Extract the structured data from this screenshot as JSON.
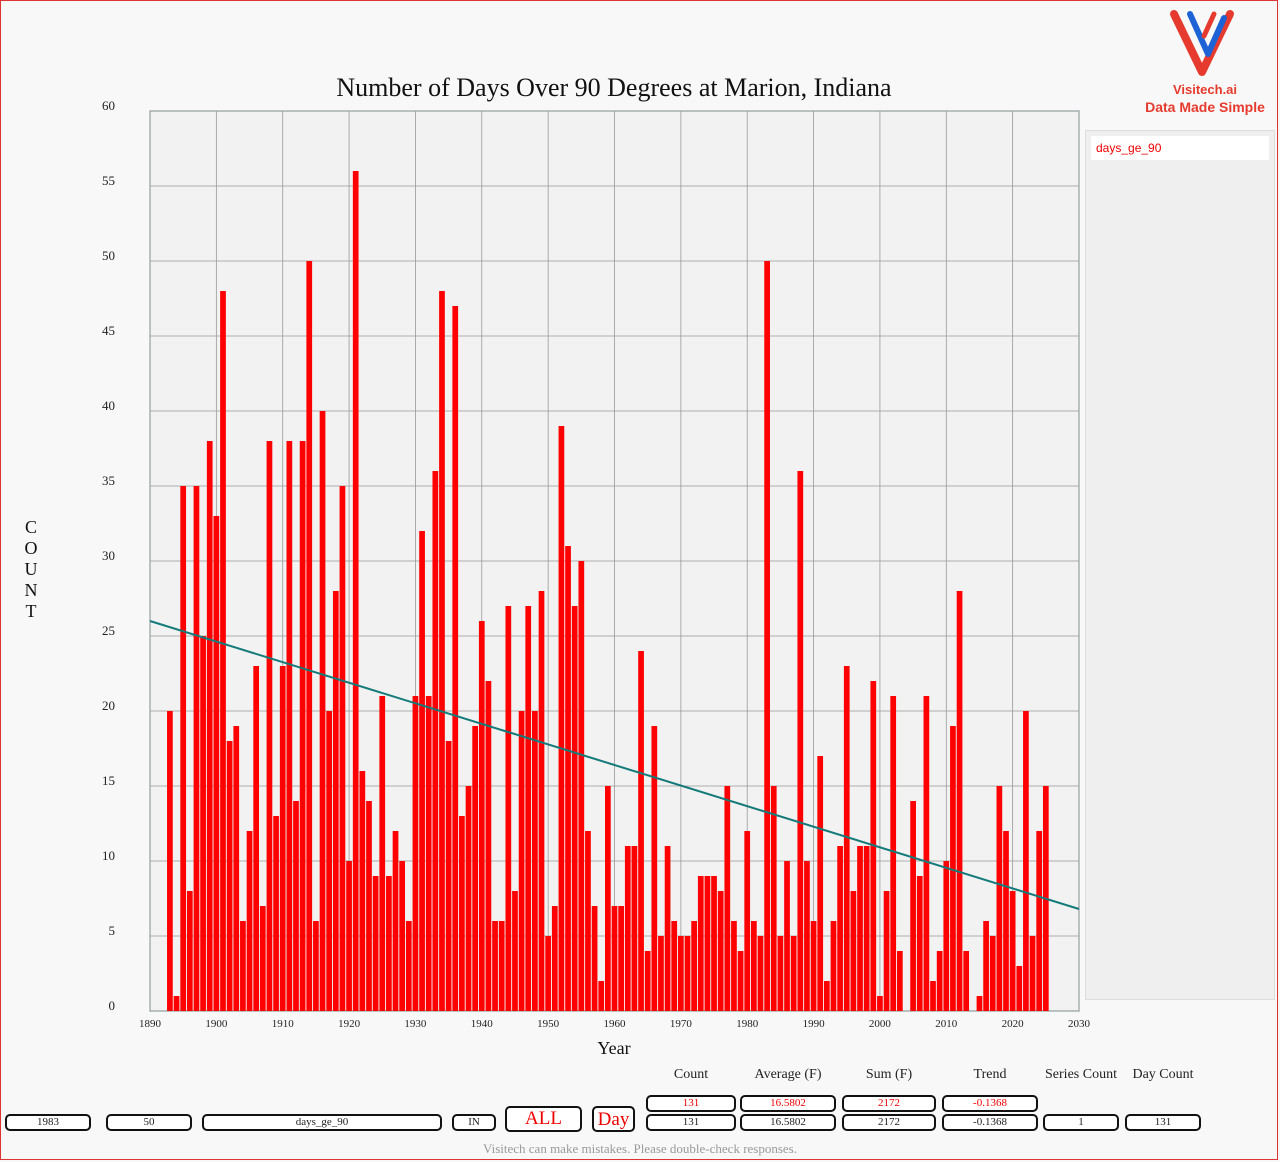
{
  "brand": {
    "name": "Visitech.ai",
    "tagline": "Data Made Simple"
  },
  "legend": {
    "items": [
      "days_ge_90"
    ]
  },
  "stats": {
    "headers": [
      "Count",
      "Average (F)",
      "Sum (F)",
      "Trend",
      "Series Count",
      "Day Count"
    ],
    "row1": [
      "131",
      "16.5802",
      "2172",
      "-0.1368"
    ],
    "row2": [
      "131",
      "16.5802",
      "2172",
      "-0.1368",
      "1",
      "131"
    ]
  },
  "controls": {
    "year_value": "1983",
    "value_value": "50",
    "series_value": "days_ge_90",
    "state_value": "IN",
    "all_label": "ALL",
    "day_label": "Day"
  },
  "footer": {
    "note": "Visitech can make mistakes. Please double-check responses."
  },
  "colors": {
    "bar": "#ff0000",
    "trend": "#147a7a",
    "accent": "#e53a2d"
  },
  "chart_data": {
    "type": "bar",
    "title": "Number of Days Over 90 Degrees at Marion, Indiana",
    "xlabel": "Year",
    "ylabel": "COUNT",
    "xlim": [
      1890,
      2030
    ],
    "ylim": [
      0,
      60
    ],
    "xticks": [
      1890,
      1900,
      1910,
      1920,
      1930,
      1940,
      1950,
      1960,
      1970,
      1980,
      1990,
      2000,
      2010,
      2020,
      2030
    ],
    "yticks": [
      0,
      5,
      10,
      15,
      20,
      25,
      30,
      35,
      40,
      45,
      50,
      55,
      60
    ],
    "grid": true,
    "series": [
      {
        "name": "days_ge_90",
        "x": [
          1893,
          1894,
          1895,
          1896,
          1897,
          1898,
          1899,
          1900,
          1901,
          1902,
          1903,
          1904,
          1905,
          1906,
          1907,
          1908,
          1909,
          1910,
          1911,
          1912,
          1913,
          1914,
          1915,
          1916,
          1917,
          1918,
          1919,
          1920,
          1921,
          1922,
          1923,
          1924,
          1925,
          1926,
          1927,
          1928,
          1929,
          1930,
          1931,
          1932,
          1933,
          1934,
          1935,
          1936,
          1937,
          1938,
          1939,
          1940,
          1941,
          1942,
          1943,
          1944,
          1945,
          1946,
          1947,
          1948,
          1949,
          1950,
          1951,
          1952,
          1953,
          1954,
          1955,
          1956,
          1957,
          1958,
          1959,
          1960,
          1961,
          1962,
          1963,
          1964,
          1965,
          1966,
          1967,
          1968,
          1969,
          1970,
          1971,
          1972,
          1973,
          1974,
          1975,
          1976,
          1977,
          1978,
          1979,
          1980,
          1981,
          1982,
          1983,
          1984,
          1985,
          1986,
          1987,
          1988,
          1989,
          1990,
          1991,
          1992,
          1993,
          1994,
          1995,
          1996,
          1997,
          1998,
          1999,
          2000,
          2001,
          2002,
          2003,
          2005,
          2006,
          2007,
          2008,
          2009,
          2010,
          2011,
          2012,
          2013,
          2015,
          2016,
          2017,
          2018,
          2019,
          2020,
          2021,
          2022,
          2023,
          2024,
          2025
        ],
        "values": [
          20,
          1,
          35,
          8,
          35,
          25,
          38,
          33,
          48,
          18,
          19,
          6,
          12,
          23,
          7,
          38,
          13,
          23,
          38,
          14,
          38,
          50,
          6,
          40,
          20,
          28,
          35,
          10,
          56,
          16,
          14,
          9,
          21,
          9,
          12,
          10,
          6,
          21,
          32,
          21,
          36,
          48,
          18,
          47,
          13,
          15,
          19,
          26,
          22,
          6,
          6,
          27,
          8,
          20,
          27,
          20,
          28,
          5,
          7,
          39,
          31,
          27,
          30,
          12,
          7,
          2,
          15,
          7,
          7,
          11,
          11,
          24,
          4,
          19,
          5,
          11,
          6,
          5,
          5,
          6,
          9,
          9,
          9,
          8,
          15,
          6,
          4,
          12,
          6,
          5,
          50,
          15,
          5,
          10,
          5,
          36,
          10,
          6,
          17,
          2,
          6,
          11,
          23,
          8,
          11,
          11,
          22,
          1,
          8,
          21,
          4,
          14,
          9,
          21,
          2,
          4,
          10,
          19,
          28,
          4,
          1,
          6,
          5,
          15,
          12,
          8,
          3,
          20,
          5,
          12,
          15
        ]
      }
    ],
    "trend": {
      "name": "Trend",
      "slope": -0.1368,
      "y_at_1890": 26.0,
      "y_at_2030": 6.8
    }
  }
}
